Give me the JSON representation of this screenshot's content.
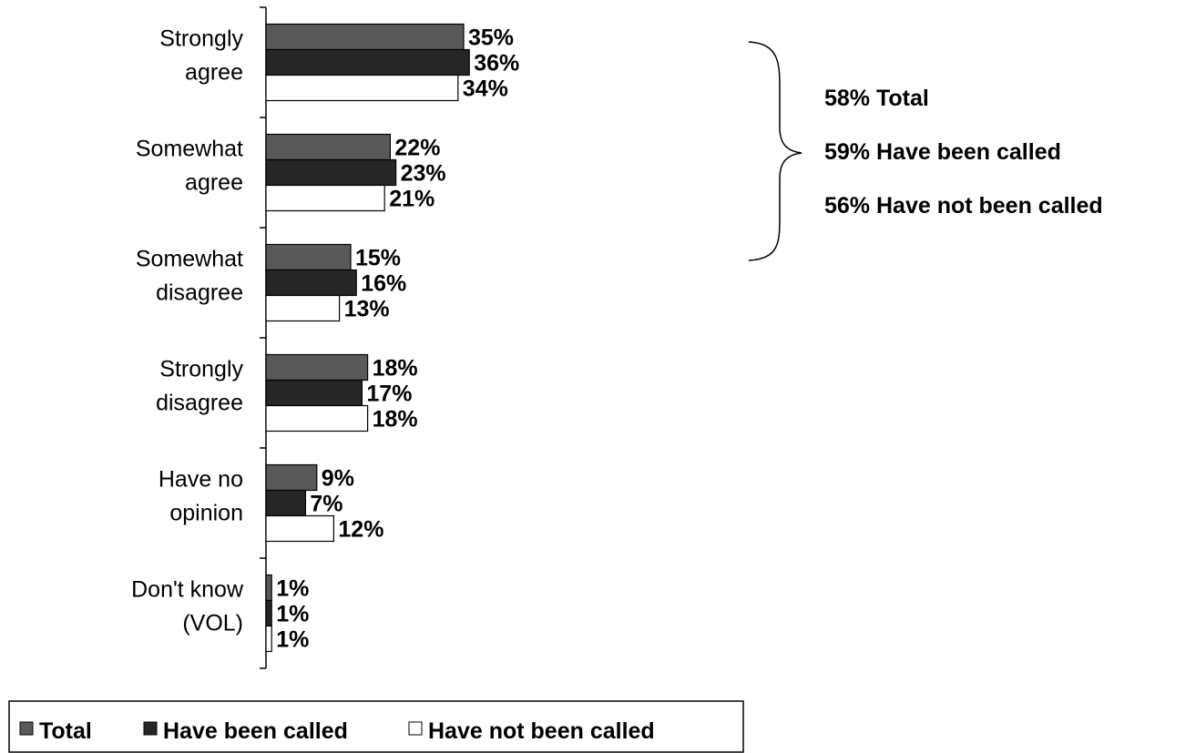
{
  "chart_data": {
    "type": "bar",
    "orientation": "horizontal",
    "categories": [
      [
        "Strongly",
        "agree"
      ],
      [
        "Somewhat",
        "agree"
      ],
      [
        "Somewhat",
        "disagree"
      ],
      [
        "Strongly",
        "disagree"
      ],
      [
        "Have no",
        "opinion"
      ],
      [
        "Don't know",
        "(VOL)"
      ]
    ],
    "series": [
      {
        "name": "Total",
        "values": [
          35,
          22,
          15,
          18,
          9,
          1
        ],
        "labels": [
          "35%",
          "22%",
          "15%",
          "18%",
          "9%",
          "1%"
        ],
        "color": "#595959"
      },
      {
        "name": "Have been called",
        "values": [
          36,
          23,
          16,
          17,
          7,
          1
        ],
        "labels": [
          "36%",
          "23%",
          "16%",
          "17%",
          "7%",
          "1%"
        ],
        "color": "#262626"
      },
      {
        "name": "Have not been called",
        "values": [
          34,
          21,
          13,
          18,
          12,
          1
        ],
        "labels": [
          "34%",
          "21%",
          "13%",
          "18%",
          "12%",
          "1%"
        ],
        "color": "#ffffff"
      }
    ],
    "xlim": [
      0,
      100
    ],
    "grid": false,
    "legend_placement": "bottom-left",
    "legend": [
      "Total",
      "Have been called",
      "Have not been called"
    ],
    "annotation": {
      "brackets_categories": [
        "Strongly agree",
        "Somewhat agree"
      ],
      "lines": [
        "58% Total",
        "59% Have been called",
        "56% Have not been called"
      ]
    }
  }
}
